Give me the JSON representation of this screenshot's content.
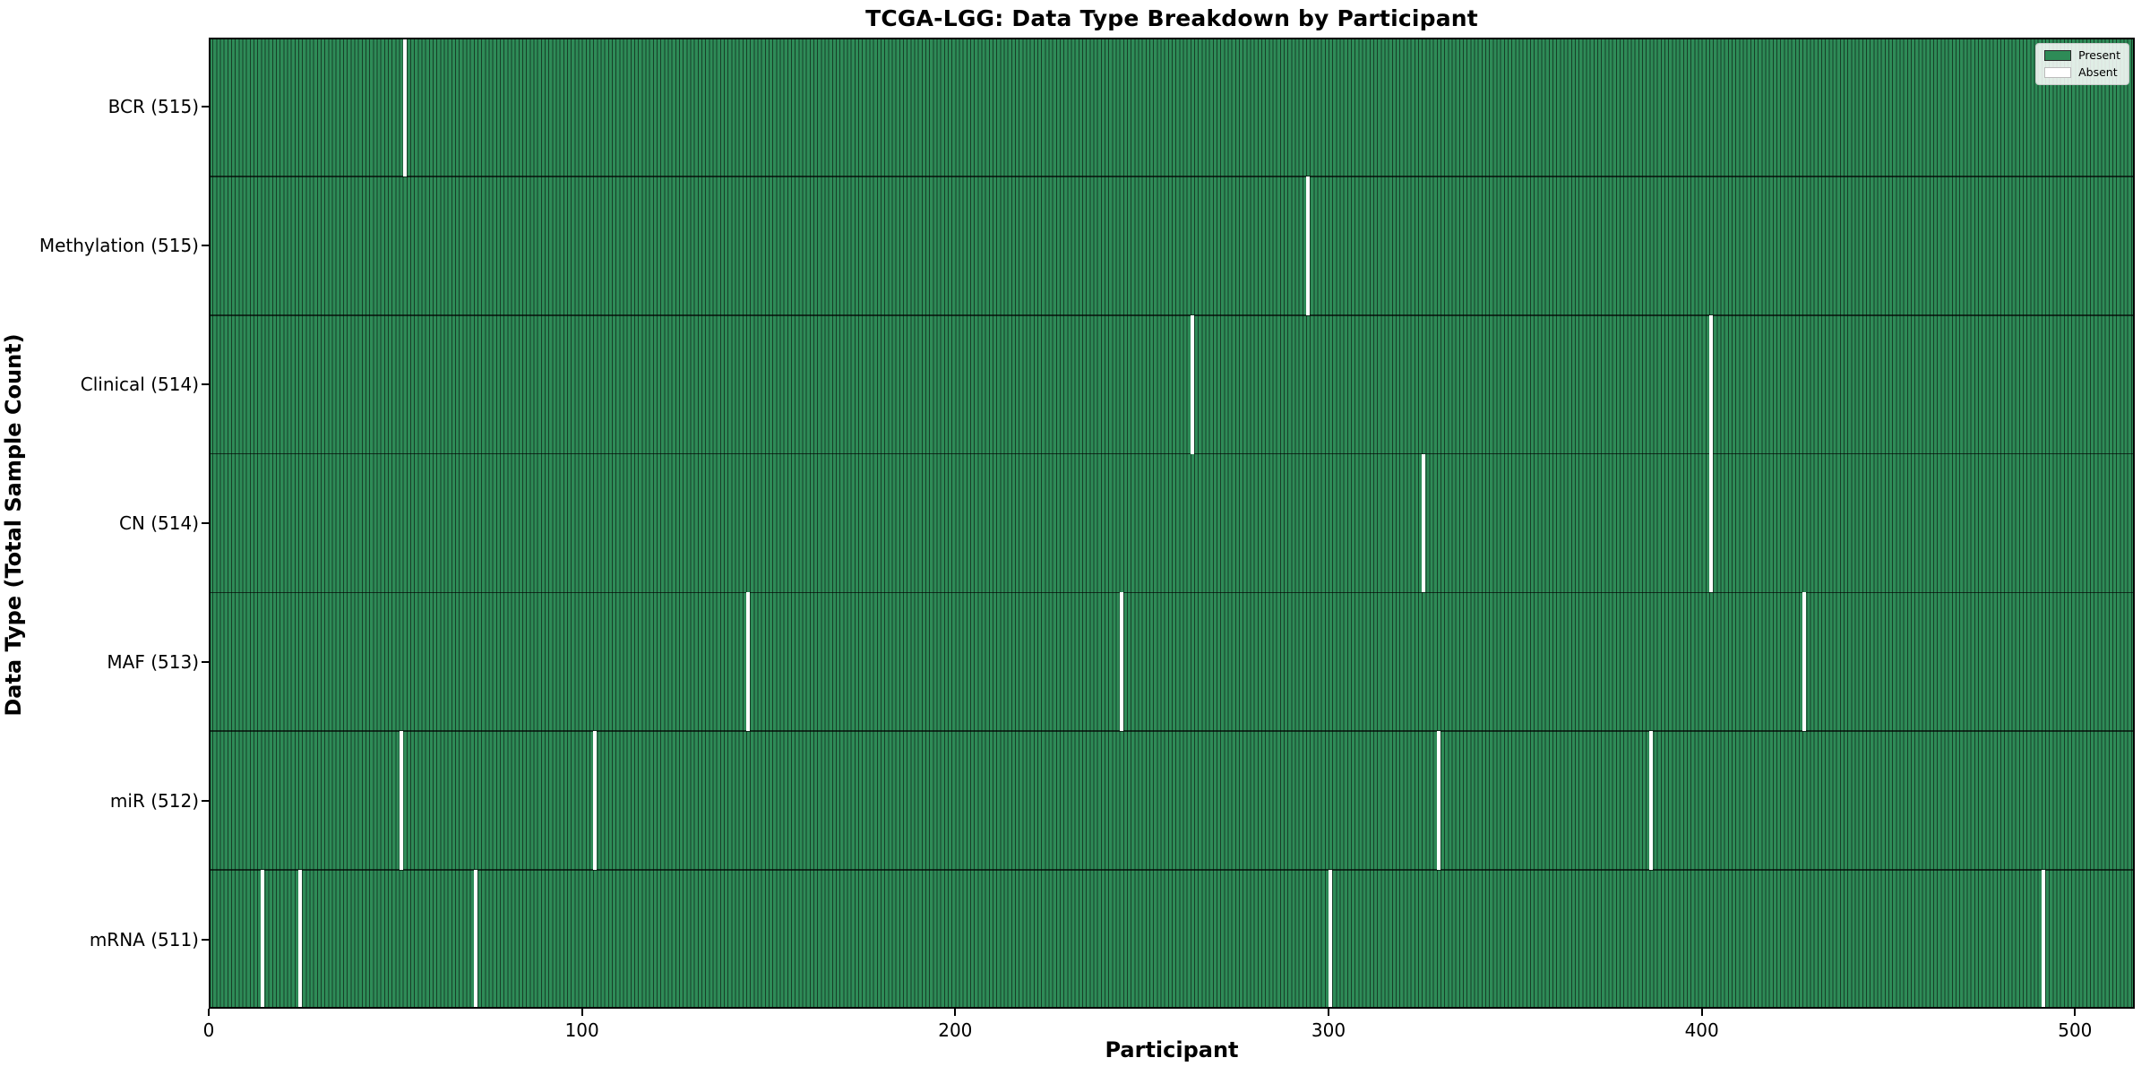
{
  "chart_data": {
    "type": "heatmap",
    "title": "TCGA-LGG: Data Type Breakdown by Participant",
    "xlabel": "Participant",
    "ylabel": "Data Type (Total Sample Count)",
    "n_participants": 516,
    "xlim": [
      0,
      516
    ],
    "x_ticks": [
      0,
      100,
      200,
      300,
      400,
      500
    ],
    "grid": false,
    "legend": {
      "position": "upper right",
      "entries": [
        {
          "label": "Present",
          "color": "#2e8b57"
        },
        {
          "label": "Absent",
          "color": "#ffffff"
        }
      ]
    },
    "colors": {
      "present": "#2e8b57",
      "absent": "#ffffff",
      "bar_edge": "#173f28",
      "spine": "#000000"
    },
    "rows": [
      {
        "label": "BCR (515)",
        "data_type": "BCR",
        "present_count": 515,
        "absent_participants": [
          52
        ]
      },
      {
        "label": "Methylation (515)",
        "data_type": "Methylation",
        "present_count": 515,
        "absent_participants": [
          294
        ]
      },
      {
        "label": "Clinical (514)",
        "data_type": "Clinical",
        "present_count": 514,
        "absent_participants": [
          263,
          402
        ]
      },
      {
        "label": "CN (514)",
        "data_type": "CN",
        "present_count": 514,
        "absent_participants": [
          325,
          402
        ]
      },
      {
        "label": "MAF (513)",
        "data_type": "MAF",
        "present_count": 513,
        "absent_participants": [
          144,
          244,
          427
        ]
      },
      {
        "label": "miR (512)",
        "data_type": "miR",
        "present_count": 512,
        "absent_participants": [
          51,
          103,
          329,
          386
        ]
      },
      {
        "label": "mRNA (511)",
        "data_type": "mRNA",
        "present_count": 511,
        "absent_participants": [
          14,
          24,
          71,
          300,
          491
        ]
      }
    ]
  }
}
